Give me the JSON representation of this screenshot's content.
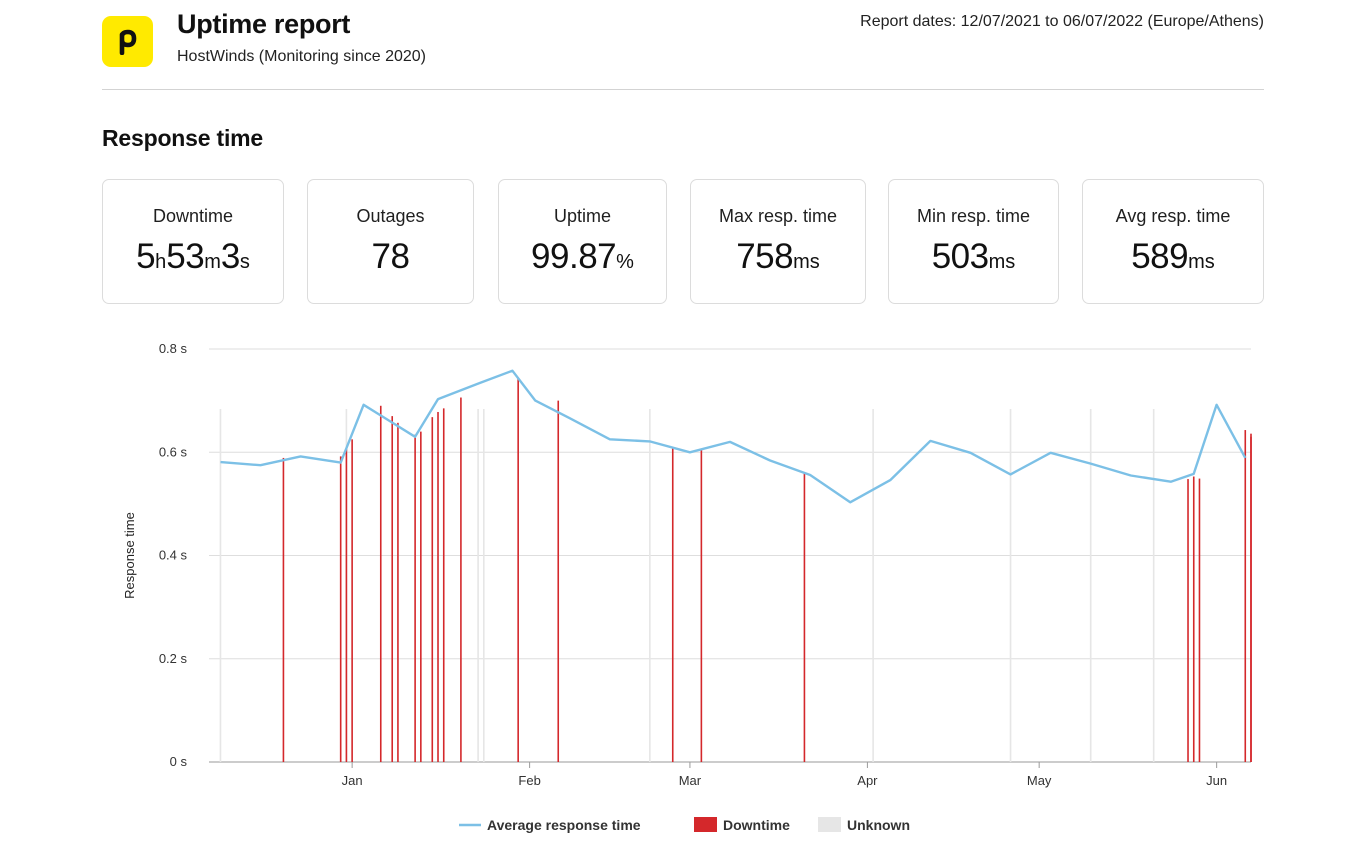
{
  "header": {
    "logo_icon": "pingdom-p-logo",
    "title": "Uptime report",
    "subtitle": "HostWinds (Monitoring since 2020)",
    "report_dates": "Report dates: 12/07/2021 to 06/07/2022 (Europe/Athens)"
  },
  "section": {
    "title": "Response time"
  },
  "stats": [
    {
      "label": "Downtime",
      "value_parts": [
        "5",
        "h",
        "53",
        "m",
        "3",
        "s"
      ]
    },
    {
      "label": "Outages",
      "value_parts": [
        "78"
      ]
    },
    {
      "label": "Uptime",
      "value_parts": [
        "99.87",
        "%"
      ]
    },
    {
      "label": "Max resp. time",
      "value_parts": [
        "758",
        "ms"
      ]
    },
    {
      "label": "Min resp. time",
      "value_parts": [
        "503",
        "ms"
      ]
    },
    {
      "label": "Avg resp. time",
      "value_parts": [
        "589",
        "ms"
      ]
    }
  ],
  "colors": {
    "logo_bg": "#ffea00",
    "line": "#7cc0e6",
    "downtime": "#d4282b",
    "unknown": "#e6e6e6",
    "grid": "#dedede"
  },
  "chart_data": {
    "type": "line",
    "ylabel": "Response time",
    "ylim": [
      0,
      0.8
    ],
    "y_ticks": [
      {
        "value": 0,
        "label": "0  s"
      },
      {
        "value": 0.2,
        "label": "0.2  s"
      },
      {
        "value": 0.4,
        "label": "0.4  s"
      },
      {
        "value": 0.6,
        "label": "0.6  s"
      },
      {
        "value": 0.8,
        "label": "0.8  s"
      }
    ],
    "x_range": [
      "2021-12-07",
      "2022-06-07"
    ],
    "x_ticks": [
      {
        "date": "2022-01-01",
        "label": "Jan"
      },
      {
        "date": "2022-02-01",
        "label": "Feb"
      },
      {
        "date": "2022-03-01",
        "label": "Mar"
      },
      {
        "date": "2022-04-01",
        "label": "Apr"
      },
      {
        "date": "2022-05-01",
        "label": "May"
      },
      {
        "date": "2022-06-01",
        "label": "Jun"
      }
    ],
    "grid": true,
    "legend_position": "bottom-center",
    "legend": [
      {
        "label": "Average response time",
        "kind": "line"
      },
      {
        "label": "Downtime",
        "kind": "box"
      },
      {
        "label": "Unknown",
        "kind": "box"
      }
    ],
    "series": [
      {
        "name": "Average response time",
        "points": [
          [
            "2021-12-09",
            0.581
          ],
          [
            "2021-12-16",
            0.575
          ],
          [
            "2021-12-23",
            0.592
          ],
          [
            "2021-12-30",
            0.58
          ],
          [
            "2022-01-03",
            0.692
          ],
          [
            "2022-01-12",
            0.63
          ],
          [
            "2022-01-16",
            0.703
          ],
          [
            "2022-01-23",
            0.733
          ],
          [
            "2022-01-29",
            0.758
          ],
          [
            "2022-02-02",
            0.7
          ],
          [
            "2022-02-08",
            0.666
          ],
          [
            "2022-02-15",
            0.625
          ],
          [
            "2022-02-22",
            0.621
          ],
          [
            "2022-03-01",
            0.6
          ],
          [
            "2022-03-08",
            0.62
          ],
          [
            "2022-03-15",
            0.584
          ],
          [
            "2022-03-22",
            0.556
          ],
          [
            "2022-03-29",
            0.503
          ],
          [
            "2022-04-05",
            0.546
          ],
          [
            "2022-04-12",
            0.622
          ],
          [
            "2022-04-19",
            0.599
          ],
          [
            "2022-04-26",
            0.557
          ],
          [
            "2022-05-03",
            0.599
          ],
          [
            "2022-05-10",
            0.578
          ],
          [
            "2022-05-17",
            0.555
          ],
          [
            "2022-05-24",
            0.543
          ],
          [
            "2022-05-28",
            0.558
          ],
          [
            "2022-06-01",
            0.692
          ],
          [
            "2022-06-06",
            0.589
          ]
        ]
      }
    ],
    "downtime": [
      {
        "date": "2021-12-20",
        "value": 0.589
      },
      {
        "date": "2021-12-30",
        "value": 0.592
      },
      {
        "date": "2021-12-31",
        "value": 0.609
      },
      {
        "date": "2022-01-01",
        "value": 0.625
      },
      {
        "date": "2022-01-06",
        "value": 0.69
      },
      {
        "date": "2022-01-08",
        "value": 0.67
      },
      {
        "date": "2022-01-09",
        "value": 0.657
      },
      {
        "date": "2022-01-12",
        "value": 0.634
      },
      {
        "date": "2022-01-13",
        "value": 0.64
      },
      {
        "date": "2022-01-15",
        "value": 0.668
      },
      {
        "date": "2022-01-16",
        "value": 0.678
      },
      {
        "date": "2022-01-17",
        "value": 0.685
      },
      {
        "date": "2022-01-20",
        "value": 0.706
      },
      {
        "date": "2022-01-30",
        "value": 0.745
      },
      {
        "date": "2022-02-06",
        "value": 0.7
      },
      {
        "date": "2022-02-26",
        "value": 0.608
      },
      {
        "date": "2022-03-03",
        "value": 0.606
      },
      {
        "date": "2022-03-21",
        "value": 0.56
      },
      {
        "date": "2022-05-27",
        "value": 0.548
      },
      {
        "date": "2022-05-28",
        "value": 0.553
      },
      {
        "date": "2022-05-29",
        "value": 0.549
      },
      {
        "date": "2022-06-06",
        "value": 0.643
      },
      {
        "date": "2022-06-07",
        "value": 0.636
      },
      {
        "date": "2022-06-07",
        "value": 0.63
      }
    ],
    "unknown_dates": [
      "2021-12-09",
      "2021-12-31",
      "2022-01-23",
      "2022-01-24",
      "2022-02-22",
      "2022-04-02",
      "2022-04-26",
      "2022-05-10",
      "2022-05-21"
    ]
  }
}
